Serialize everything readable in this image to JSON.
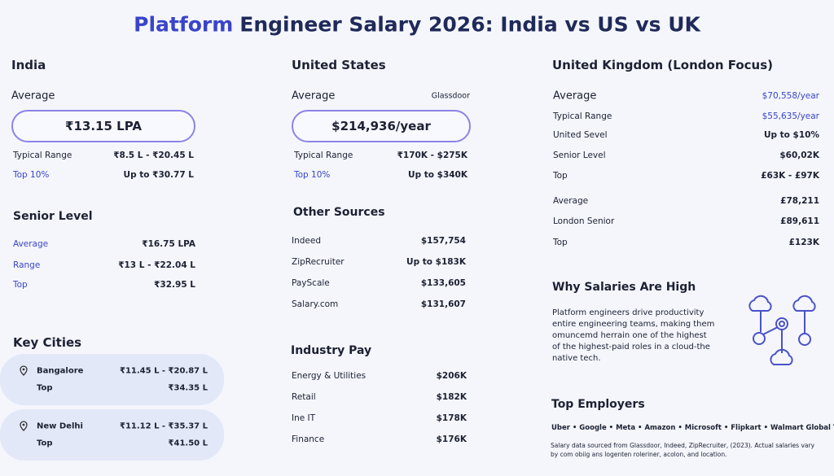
{
  "title": {
    "highlight": "Platform",
    "rest": "Engineer Salary 2026: India vs US vs UK"
  },
  "india": {
    "heading": "India",
    "average_label": "Average",
    "average_value": "₹13.15 LPA",
    "rows": [
      [
        "Typical Range",
        "₹8.5 L - ₹20.45 L"
      ],
      [
        "Top 10%",
        "Up to ₹30.77 L"
      ]
    ],
    "senior": {
      "heading": "Senior Level",
      "rows": [
        [
          "Average",
          "₹16.75 LPA"
        ],
        [
          "Range",
          "₹13 L - ₹22.04 L"
        ],
        [
          "Top",
          "₹32.95 L"
        ]
      ]
    },
    "cities": {
      "heading": "Key Cities",
      "items": [
        {
          "name": "Bangalore",
          "range": "₹11.45 L - ₹20.87 L",
          "top_label": "Top",
          "top": "₹34.35 L"
        },
        {
          "name": "New Delhi",
          "range": "₹11.12 L - ₹35.37 L",
          "top_label": "Top",
          "top": "₹41.50 L"
        }
      ]
    }
  },
  "us": {
    "heading": "United States",
    "average_label": "Average",
    "source": "Glassdoor",
    "average_value": "$214,936/year",
    "rows": [
      [
        "Typical Range",
        "₹170K - $275K"
      ],
      [
        "Top 10%",
        "Up to $340K"
      ]
    ],
    "other_sources": {
      "heading": "Other Sources",
      "rows": [
        [
          "Indeed",
          "$157,754"
        ],
        [
          "ZipRecruiter",
          "Up to $183K"
        ],
        [
          "PayScale",
          "$133,605"
        ],
        [
          "Salary.com",
          "$131,607"
        ]
      ]
    },
    "industry": {
      "heading": "Industry Pay",
      "rows": [
        [
          "Energy & Utilities",
          "$206K"
        ],
        [
          "Retail",
          "$182K"
        ],
        [
          "Ine IT",
          "$178K"
        ],
        [
          "Finance",
          "$176K"
        ]
      ]
    }
  },
  "uk": {
    "heading": "United Kingdom (London Focus)",
    "rows": [
      [
        "Average",
        "$70,558/year"
      ],
      [
        "Typical Range",
        "$55,635/year"
      ],
      [
        "United Sevel",
        "Up to $10%"
      ],
      [
        "Senior Level",
        "$60,02K"
      ],
      [
        "Top",
        "£63K - £97K"
      ],
      [
        "Average",
        "£78,211"
      ],
      [
        "London Senior",
        "£89,611"
      ],
      [
        "Top",
        "£123K"
      ]
    ],
    "why": {
      "heading": "Why Salaries Are High",
      "text": "Platform engineers drive productivity entire engineering teams, making them omuncemd herrain one of the highest of the highest-paid roles in a cloud-the native tech."
    },
    "employers": {
      "heading": "Top Employers",
      "list": "Uber • Google • Meta • Amazon • Microsoft • Flipkart • Walmart Global Tech",
      "footnote": "Salary data sourced from Glassdoor, Indeed, ZipRecruiter, (2023). Actual salaries vary by com obiig ans logenten roleriner, acolon, and location."
    }
  }
}
